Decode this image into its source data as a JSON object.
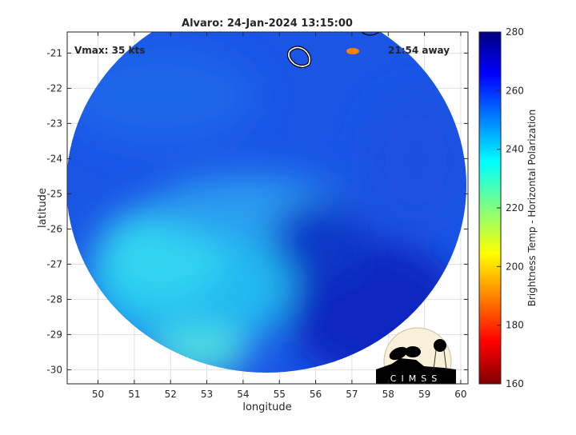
{
  "title": "Alvaro: 24-Jan-2024 13:15:00",
  "annotations": {
    "vmax": "Vmax: 35 kts",
    "away": "21:54 away"
  },
  "chart_data": {
    "type": "heatmap",
    "title": "Alvaro: 24-Jan-2024 13:15:00",
    "xlabel": "longitude",
    "ylabel": "latitude",
    "xlim": [
      49.15,
      60.2
    ],
    "ylim": [
      -30.4,
      -20.4
    ],
    "x_ticks": [
      "50",
      "51",
      "52",
      "53",
      "54",
      "55",
      "56",
      "57",
      "58",
      "59",
      "60"
    ],
    "y_ticks": [
      "-21",
      "-22",
      "-23",
      "-24",
      "-25",
      "-26",
      "-27",
      "-28",
      "-29",
      "-30"
    ],
    "grid": true,
    "colorbar": {
      "label": "Brightness Temp - Horizontal Polarization",
      "range": [
        160,
        280
      ],
      "ticks": [
        "160",
        "180",
        "200",
        "220",
        "240",
        "260",
        "280"
      ],
      "colormap": "jet"
    }
  },
  "logo": {
    "text": "CIMSS"
  },
  "colors": {
    "cold": "#1040e0",
    "warm": "#30d0f0",
    "dark": "#0a20b8"
  }
}
